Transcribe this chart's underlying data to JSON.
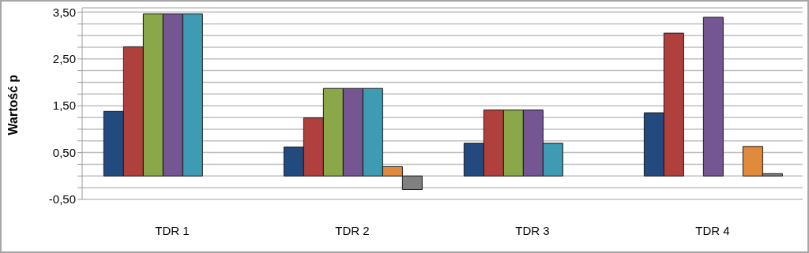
{
  "chart_data": {
    "type": "bar",
    "ylabel": "Wartość p",
    "categories": [
      "TDR 1",
      "TDR 2",
      "TDR 3",
      "TDR 4"
    ],
    "series": [
      {
        "color": "#234a7e",
        "values": [
          1.38,
          0.62,
          0.7,
          1.35
        ]
      },
      {
        "color": "#b0403d",
        "values": [
          2.76,
          1.24,
          1.41,
          3.05
        ]
      },
      {
        "color": "#8aa84a",
        "values": [
          3.46,
          1.87,
          1.41,
          null
        ]
      },
      {
        "color": "#735692",
        "values": [
          3.46,
          1.87,
          1.41,
          3.39
        ]
      },
      {
        "color": "#3f9ab3",
        "values": [
          3.46,
          1.87,
          0.7,
          null
        ]
      },
      {
        "color": "#e08a3c",
        "values": [
          null,
          0.2,
          null,
          0.63
        ]
      },
      {
        "color": "#808080",
        "values": [
          null,
          -0.29,
          null,
          0.05
        ]
      }
    ],
    "ylim": [
      -0.5,
      3.59
    ],
    "yticks": [
      {
        "value": -0.5,
        "label": "-0,50"
      },
      {
        "value": -0.25,
        "label": null
      },
      {
        "value": 0,
        "label": null
      },
      {
        "value": 0.25,
        "label": null
      },
      {
        "value": 0.5,
        "label": "0,50"
      },
      {
        "value": 0.75,
        "label": null
      },
      {
        "value": 1,
        "label": null
      },
      {
        "value": 1.25,
        "label": null
      },
      {
        "value": 1.5,
        "label": "1,50"
      },
      {
        "value": 1.75,
        "label": null
      },
      {
        "value": 2,
        "label": null
      },
      {
        "value": 2.25,
        "label": null
      },
      {
        "value": 2.5,
        "label": "2,50"
      },
      {
        "value": 2.75,
        "label": null
      },
      {
        "value": 3,
        "label": null
      },
      {
        "value": 3.25,
        "label": null
      },
      {
        "value": 3.5,
        "label": "3,50"
      }
    ],
    "grid": "y",
    "legend": false
  }
}
